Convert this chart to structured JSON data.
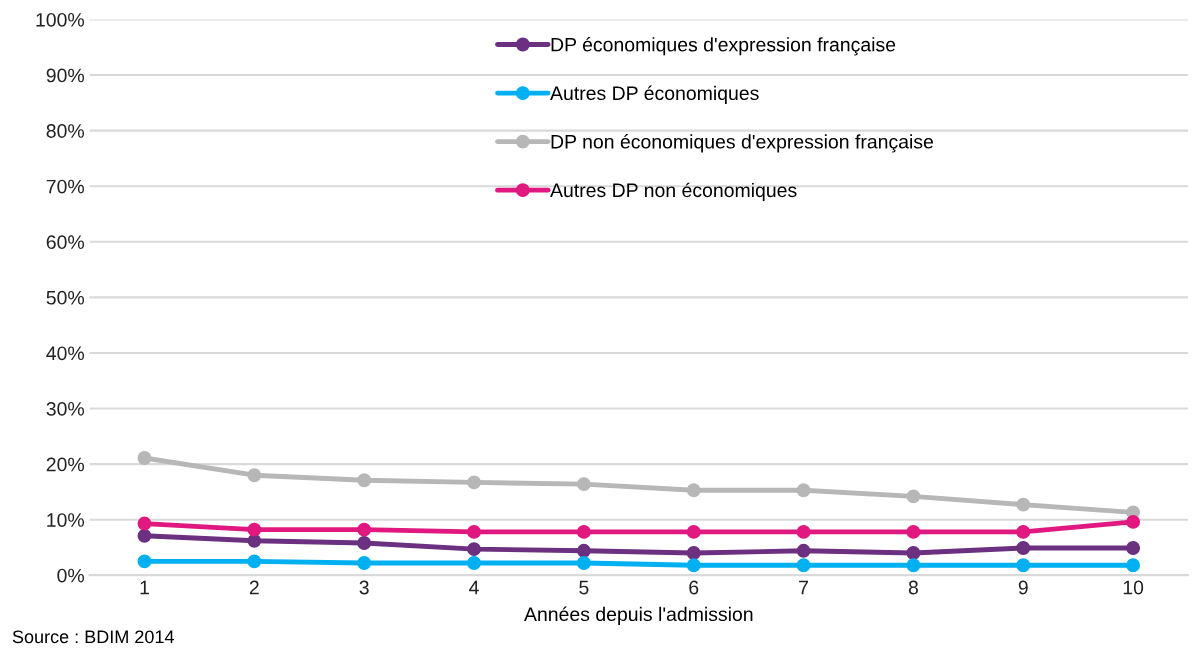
{
  "chart_data": {
    "type": "line",
    "xlabel": "Années depuis l'admission",
    "annotations": [
      "Source : BDIM 2014"
    ],
    "categories": [
      "1",
      "2",
      "3",
      "4",
      "5",
      "6",
      "7",
      "8",
      "9",
      "10"
    ],
    "series": [
      {
        "name": "DP économiques d'expression française",
        "color": "#6b3080",
        "values": [
          7.1,
          6.2,
          5.8,
          4.7,
          4.4,
          4.0,
          4.4,
          4.0,
          4.9,
          4.9
        ]
      },
      {
        "name": "Autres DP économiques",
        "color": "#00b0f0",
        "values": [
          2.5,
          2.5,
          2.2,
          2.2,
          2.2,
          1.8,
          1.8,
          1.8,
          1.8,
          1.8
        ]
      },
      {
        "name": "DP non économiques d'expression française",
        "color": "#b7b7b7",
        "values": [
          21.1,
          18.0,
          17.1,
          16.7,
          16.4,
          15.3,
          15.3,
          14.2,
          12.7,
          11.3
        ]
      },
      {
        "name": "Autres DP non économiques",
        "color": "#e0187f",
        "values": [
          9.3,
          8.2,
          8.2,
          7.8,
          7.8,
          7.8,
          7.8,
          7.8,
          7.8,
          9.6
        ]
      }
    ],
    "ylim": [
      0,
      100
    ],
    "yticks": [
      {
        "value": 0,
        "label": "0%"
      },
      {
        "value": 10,
        "label": "10%"
      },
      {
        "value": 20,
        "label": "20%"
      },
      {
        "value": 30,
        "label": "30%"
      },
      {
        "value": 40,
        "label": "40%"
      },
      {
        "value": 50,
        "label": "50%"
      },
      {
        "value": 60,
        "label": "60%"
      },
      {
        "value": 70,
        "label": "70%"
      },
      {
        "value": 80,
        "label": "80%"
      },
      {
        "value": 90,
        "label": "90%"
      },
      {
        "value": 100,
        "label": "100%"
      }
    ],
    "grid": "y",
    "legend": "top",
    "marker": "circle",
    "line_style": "solid"
  }
}
